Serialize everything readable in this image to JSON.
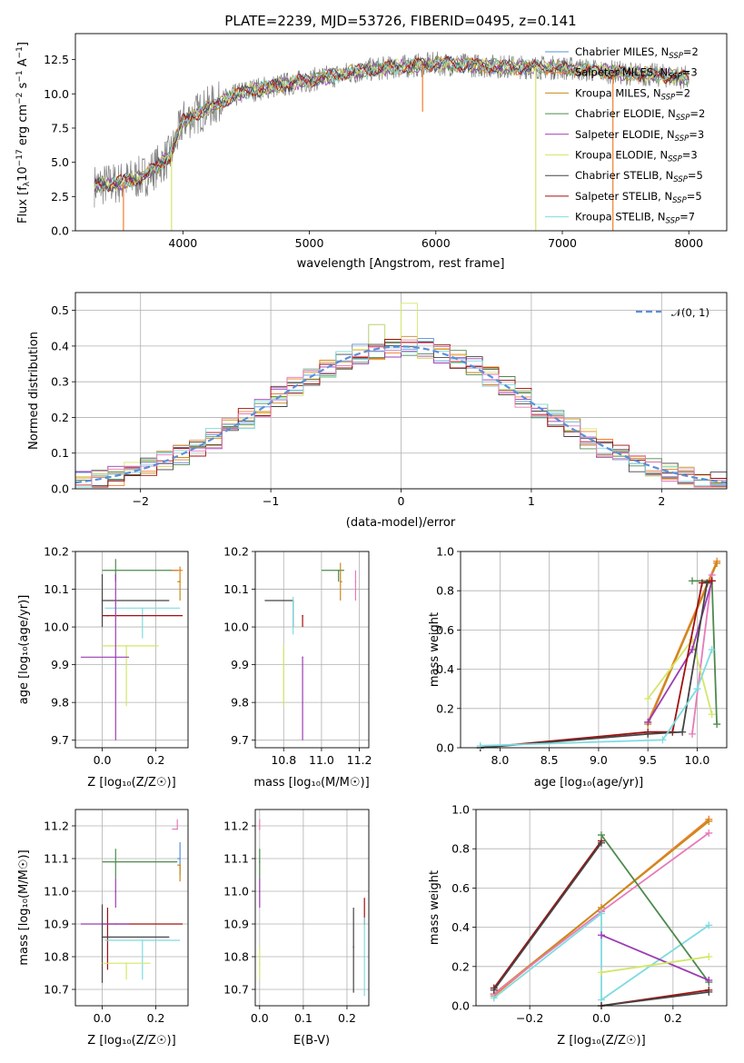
{
  "colors": {
    "chabrier_miles": "#5b8fd8",
    "salpeter_miles": "#f07d2a",
    "kroupa_miles": "#c98a1b",
    "chabrier_elodie": "#4d8a4d",
    "salpeter_elodie": "#9b3db3",
    "kroupa_elodie": "#d4e66a",
    "chabrier_stelib": "#444444",
    "salpeter_stelib": "#a01010",
    "kroupa_stelib": "#7fdbe0",
    "pink": "#e87ab8",
    "data": "#808080",
    "normal": "#5b8fd8"
  },
  "chart_data": [
    {
      "id": "spectrum",
      "type": "line",
      "title": "PLATE=2239, MJD=53726, FIBERID=0495, z=0.141",
      "xlabel": "wavelength [Angstrom, rest frame]",
      "ylabel_base": "Flux [f",
      "ylabel_sub": "λ",
      "ylabel_mid": "10",
      "ylabel_sup1": "−17",
      "ylabel_mid2": " erg cm",
      "ylabel_sup2": "−2",
      "ylabel_mid3": " s",
      "ylabel_sup3": "−1",
      "ylabel_mid4": " A",
      "ylabel_sup4": "−1",
      "ylabel_end": "]",
      "xlim": [
        3150,
        8300
      ],
      "ylim": [
        0,
        14.4
      ],
      "xticks": [
        4000,
        5000,
        6000,
        7000,
        8000
      ],
      "yticks": [
        0.0,
        2.5,
        5.0,
        7.5,
        10.0,
        12.5
      ],
      "xtick_labels": [
        "4000",
        "5000",
        "6000",
        "7000",
        "8000"
      ],
      "ytick_labels": [
        "0.0",
        "2.5",
        "5.0",
        "7.5",
        "10.0",
        "12.5"
      ],
      "legend_position": "top-right",
      "legend": [
        {
          "prefix": "Chabrier MILES, N",
          "sub": "SSP",
          "suffix": "=2"
        },
        {
          "prefix": "Salpeter MILES, N",
          "sub": "SSP",
          "suffix": "=3"
        },
        {
          "prefix": "Kroupa MILES, N",
          "sub": "SSP",
          "suffix": "=2"
        },
        {
          "prefix": "Chabrier ELODIE, N",
          "sub": "SSP",
          "suffix": "=2"
        },
        {
          "prefix": "Salpeter ELODIE, N",
          "sub": "SSP",
          "suffix": "=3"
        },
        {
          "prefix": "Kroupa ELODIE, N",
          "sub": "SSP",
          "suffix": "=3"
        },
        {
          "prefix": "Chabrier STELIB, N",
          "sub": "SSP",
          "suffix": "=5"
        },
        {
          "prefix": "Salpeter STELIB, N",
          "sub": "SSP",
          "suffix": "=5"
        },
        {
          "prefix": "Kroupa STELIB, N",
          "sub": "SSP",
          "suffix": "=7"
        }
      ],
      "data_x_range": [
        3300,
        8000
      ],
      "continuum": [
        [
          3300,
          3.3
        ],
        [
          3500,
          3.5
        ],
        [
          3700,
          4.0
        ],
        [
          3900,
          5.5
        ],
        [
          4000,
          8.0
        ],
        [
          4200,
          9.0
        ],
        [
          4500,
          10.2
        ],
        [
          5000,
          11.0
        ],
        [
          5500,
          11.8
        ],
        [
          6000,
          12.2
        ],
        [
          6500,
          12.0
        ],
        [
          7000,
          11.9
        ],
        [
          7500,
          11.5
        ],
        [
          8000,
          11.2
        ]
      ],
      "drops": [
        {
          "x": 3530,
          "y": 0.0
        },
        {
          "x": 3910,
          "y": 0.0
        },
        {
          "x": 5895,
          "y": 8.7
        },
        {
          "x": 6790,
          "y": 0.0
        },
        {
          "x": 7400,
          "y": 0.0
        }
      ]
    },
    {
      "id": "residuals",
      "type": "histogram",
      "xlabel": "(data-model)/error",
      "ylabel": "Normed distribution",
      "xlim": [
        -2.5,
        2.5
      ],
      "ylim": [
        0,
        0.55
      ],
      "xticks": [
        -2,
        -1,
        0,
        1,
        2
      ],
      "xtick_labels": [
        "−2",
        "−1",
        "0",
        "1",
        "2"
      ],
      "yticks": [
        0.0,
        0.1,
        0.2,
        0.3,
        0.4,
        0.5
      ],
      "ytick_labels": [
        "0.0",
        "0.1",
        "0.2",
        "0.3",
        "0.4",
        "0.5"
      ],
      "bins": 40,
      "highlight": [
        {
          "x": 0.1,
          "y": 0.52
        },
        {
          "x": -0.2,
          "y": 0.46
        }
      ],
      "legend_position": "top-right",
      "legend": [
        {
          "label": "𝒩(0, 1)",
          "style": "dashed"
        }
      ]
    },
    {
      "id": "age_vs_Z",
      "type": "errorbar",
      "xlabel": "Z [log₁₀(Z/Z☉)]",
      "ylabel": "age  [log₁₀(age/yr)]",
      "xlim": [
        -0.1,
        0.32
      ],
      "ylim": [
        9.68,
        10.2
      ],
      "xticks": [
        0.0,
        0.2
      ],
      "xtick_labels": [
        "0.0",
        "0.2"
      ],
      "yticks": [
        9.7,
        9.8,
        9.9,
        10.0,
        10.1,
        10.2
      ],
      "ytick_labels": [
        "9.7",
        "9.8",
        "9.9",
        "10.0",
        "10.1",
        "10.2"
      ],
      "points": [
        {
          "c": "chabrier_elodie",
          "x": 0.05,
          "xerr": [
            0.05,
            0.23
          ],
          "y": 10.15,
          "yerr": [
            0.03,
            0.03
          ]
        },
        {
          "c": "salpeter_miles",
          "x": 0.28,
          "xerr": [
            0.02,
            0.02
          ],
          "y": 10.15,
          "yerr": [
            0.0,
            0.0
          ]
        },
        {
          "c": "kroupa_miles",
          "x": 0.29,
          "xerr": [
            0.01,
            0.0
          ],
          "y": 10.12,
          "yerr": [
            0.05,
            0.04
          ]
        },
        {
          "c": "chabrier_stelib",
          "x": 0.0,
          "xerr": [
            0.0,
            0.25
          ],
          "y": 10.07,
          "yerr": [
            0.07,
            0.07
          ]
        },
        {
          "c": "kroupa_stelib",
          "x": 0.15,
          "xerr": [
            0.14,
            0.14
          ],
          "y": 10.05,
          "yerr": [
            0.08,
            0.0
          ]
        },
        {
          "c": "salpeter_stelib",
          "x": 0.02,
          "xerr": [
            0.02,
            0.28
          ],
          "y": 10.03,
          "yerr": [
            0.0,
            0.0
          ]
        },
        {
          "c": "kroupa_elodie",
          "x": 0.09,
          "xerr": [
            0.09,
            0.12
          ],
          "y": 9.95,
          "yerr": [
            0.16,
            0.0
          ]
        },
        {
          "c": "salpeter_elodie",
          "x": 0.05,
          "xerr": [
            0.13,
            0.05
          ],
          "y": 9.92,
          "yerr": [
            0.22,
            0.22
          ]
        }
      ]
    },
    {
      "id": "age_vs_mass",
      "type": "errorbar",
      "xlabel": "mass [log₁₀(M/M☉)]",
      "xlim": [
        10.65,
        11.25
      ],
      "ylim": [
        9.68,
        10.2
      ],
      "xticks": [
        10.8,
        11.0,
        11.2
      ],
      "xtick_labels": [
        "10.8",
        "11.0",
        "11.2"
      ],
      "yticks": [
        9.7,
        9.8,
        9.9,
        10.0,
        10.1,
        10.2
      ],
      "ytick_labels": [
        "9.7",
        "9.8",
        "9.9",
        "10.0",
        "10.1",
        "10.2"
      ],
      "points": [
        {
          "c": "chabrier_elodie",
          "x": 11.09,
          "xerr": [
            0.09,
            0.03
          ],
          "y": 10.15,
          "yerr": [
            0.03,
            0.0
          ]
        },
        {
          "c": "kroupa_miles",
          "x": 11.1,
          "xerr": [
            0.0,
            0.01
          ],
          "y": 10.12,
          "yerr": [
            0.05,
            0.05
          ]
        },
        {
          "c": "pink",
          "x": 11.18,
          "xerr": [
            0.0,
            0.0
          ],
          "y": 10.12,
          "yerr": [
            0.05,
            0.03
          ]
        },
        {
          "c": "chabrier_stelib",
          "x": 10.85,
          "xerr": [
            0.15,
            0.0
          ],
          "y": 10.07,
          "yerr": [
            0.07,
            0.0
          ]
        },
        {
          "c": "kroupa_stelib",
          "x": 10.85,
          "xerr": [
            0.0,
            0.0
          ],
          "y": 10.05,
          "yerr": [
            0.07,
            0.03
          ]
        },
        {
          "c": "salpeter_stelib",
          "x": 10.9,
          "xerr": [
            0.0,
            0.0
          ],
          "y": 10.03,
          "yerr": [
            0.03,
            0.0
          ]
        },
        {
          "c": "kroupa_elodie",
          "x": 10.8,
          "xerr": [
            0.0,
            0.0
          ],
          "y": 9.95,
          "yerr": [
            0.16,
            0.0
          ]
        },
        {
          "c": "salpeter_elodie",
          "x": 10.9,
          "xerr": [
            0.0,
            0.0
          ],
          "y": 9.92,
          "yerr": [
            0.22,
            0.0
          ]
        }
      ]
    },
    {
      "id": "weight_vs_age",
      "type": "line",
      "xlabel": "age  [log₁₀(age/yr)]",
      "ylabel": "mass weight",
      "xlim": [
        7.6,
        10.3
      ],
      "ylim": [
        0,
        1
      ],
      "xticks": [
        8.0,
        8.5,
        9.0,
        9.5,
        10.0
      ],
      "xtick_labels": [
        "8.0",
        "8.5",
        "9.0",
        "9.5",
        "10.0"
      ],
      "yticks": [
        0.0,
        0.2,
        0.4,
        0.6,
        0.8,
        1.0
      ],
      "ytick_labels": [
        "0.0",
        "0.2",
        "0.4",
        "0.6",
        "0.8",
        "1.0"
      ],
      "series": [
        {
          "c": "salpeter_miles",
          "x": [
            9.5,
            10.2
          ],
          "y": [
            0.13,
            0.95
          ]
        },
        {
          "c": "kroupa_miles",
          "x": [
            9.5,
            10.2
          ],
          "y": [
            0.12,
            0.94
          ]
        },
        {
          "c": "pink",
          "x": [
            9.95,
            10.15
          ],
          "y": [
            0.07,
            0.88
          ]
        },
        {
          "c": "kroupa_elodie",
          "x": [
            9.5,
            9.95,
            10.15
          ],
          "y": [
            0.25,
            0.55,
            0.17
          ]
        },
        {
          "c": "salpeter_elodie",
          "x": [
            9.5,
            9.95,
            10.15
          ],
          "y": [
            0.13,
            0.5,
            0.85
          ]
        },
        {
          "c": "chabrier_elodie",
          "x": [
            9.95,
            10.15,
            10.2
          ],
          "y": [
            0.85,
            0.85,
            0.12
          ]
        },
        {
          "c": "salpeter_stelib",
          "x": [
            7.8,
            9.5,
            9.75,
            10.05,
            10.15
          ],
          "y": [
            0.0,
            0.08,
            0.08,
            0.84,
            0.85
          ]
        },
        {
          "c": "chabrier_stelib",
          "x": [
            7.8,
            9.5,
            9.85,
            10.1
          ],
          "y": [
            0.0,
            0.07,
            0.08,
            0.84
          ]
        },
        {
          "c": "kroupa_stelib",
          "x": [
            7.8,
            9.65,
            10.0,
            10.15
          ],
          "y": [
            0.01,
            0.04,
            0.3,
            0.5
          ]
        }
      ]
    },
    {
      "id": "mass_vs_Z",
      "type": "errorbar",
      "xlabel": "Z [log₁₀(Z/Z☉)]",
      "ylabel": "mass [log₁₀(M/M☉)]",
      "xlim": [
        -0.1,
        0.32
      ],
      "ylim": [
        10.65,
        11.25
      ],
      "xticks": [
        0.0,
        0.2
      ],
      "xtick_labels": [
        "0.0",
        "0.2"
      ],
      "yticks": [
        10.7,
        10.8,
        10.9,
        11.0,
        11.1,
        11.2
      ],
      "ytick_labels": [
        "10.7",
        "10.8",
        "10.9",
        "11.0",
        "11.1",
        "11.2"
      ],
      "points": [
        {
          "c": "pink",
          "x": 0.28,
          "xerr": [
            0.02,
            0.0
          ],
          "y": 11.19,
          "yerr": [
            0.0,
            0.03
          ]
        },
        {
          "c": "chabrier_miles",
          "x": 0.29,
          "xerr": [
            0.01,
            0.0
          ],
          "y": 11.1,
          "yerr": [
            0.05,
            0.05
          ]
        },
        {
          "c": "chabrier_elodie",
          "x": 0.05,
          "xerr": [
            0.05,
            0.23
          ],
          "y": 11.09,
          "yerr": [
            0.05,
            0.04
          ]
        },
        {
          "c": "kroupa_miles",
          "x": 0.29,
          "xerr": [
            0.01,
            0.0
          ],
          "y": 11.08,
          "yerr": [
            0.05,
            0.0
          ]
        },
        {
          "c": "salpeter_elodie",
          "x": 0.05,
          "xerr": [
            0.0,
            0.0
          ],
          "y": 11.0,
          "yerr": [
            0.05,
            0.04
          ]
        },
        {
          "c": "salpeter_stelib",
          "x": 0.02,
          "xerr": [
            0.02,
            0.28
          ],
          "y": 10.9,
          "yerr": [
            0.14,
            0.05
          ]
        },
        {
          "c": "salpeter_elodie",
          "x": 0.05,
          "xerr": [
            0.13,
            0.05
          ],
          "y": 10.9,
          "yerr": [
            0.0,
            0.0
          ]
        },
        {
          "c": "chabrier_stelib",
          "x": 0.0,
          "xerr": [
            0.0,
            0.25
          ],
          "y": 10.86,
          "yerr": [
            0.14,
            0.1
          ]
        },
        {
          "c": "kroupa_stelib",
          "x": 0.15,
          "xerr": [
            0.14,
            0.14
          ],
          "y": 10.85,
          "yerr": [
            0.12,
            0.0
          ]
        },
        {
          "c": "kroupa_elodie",
          "x": 0.09,
          "xerr": [
            0.09,
            0.09
          ],
          "y": 10.78,
          "yerr": [
            0.05,
            0.0
          ]
        }
      ]
    },
    {
      "id": "mass_vs_ebv",
      "type": "errorbar",
      "xlabel": "E(B-V)",
      "xlim": [
        -0.01,
        0.25
      ],
      "ylim": [
        10.65,
        11.25
      ],
      "xticks": [
        0.0,
        0.1,
        0.2
      ],
      "xtick_labels": [
        "0.0",
        "0.1",
        "0.2"
      ],
      "yticks": [
        10.7,
        10.8,
        10.9,
        11.0,
        11.1,
        11.2
      ],
      "ytick_labels": [
        "10.7",
        "10.8",
        "10.9",
        "11.0",
        "11.1",
        "11.2"
      ],
      "points": [
        {
          "c": "pink",
          "x": 0.0,
          "y": 11.19,
          "yerr": [
            0.0,
            0.03
          ]
        },
        {
          "c": "chabrier_elodie",
          "x": 0.0,
          "y": 11.09,
          "yerr": [
            0.05,
            0.04
          ]
        },
        {
          "c": "salpeter_elodie",
          "x": 0.0,
          "y": 11.0,
          "yerr": [
            0.05,
            0.04
          ]
        },
        {
          "c": "kroupa_elodie",
          "x": 0.0,
          "y": 10.78,
          "yerr": [
            0.05,
            0.05
          ]
        },
        {
          "c": "chabrier_stelib",
          "x": 0.215,
          "y": 10.83,
          "yerr": [
            0.14,
            0.12
          ]
        },
        {
          "c": "salpeter_stelib",
          "x": 0.24,
          "y": 10.9,
          "yerr": [
            0.0,
            0.08
          ]
        },
        {
          "c": "kroupa_stelib",
          "x": 0.24,
          "y": 10.8,
          "yerr": [
            0.12,
            0.12
          ]
        }
      ]
    },
    {
      "id": "weight_vs_Z",
      "type": "line",
      "xlabel": "Z [log₁₀(Z/Z☉)]",
      "ylabel": "mass weight",
      "xlim": [
        -0.35,
        0.35
      ],
      "ylim": [
        0,
        1
      ],
      "xticks": [
        -0.2,
        0.0,
        0.2
      ],
      "xtick_labels": [
        "−0.2",
        "0.0",
        "0.2"
      ],
      "yticks": [
        0.0,
        0.2,
        0.4,
        0.6,
        0.8,
        1.0
      ],
      "ytick_labels": [
        "0.0",
        "0.2",
        "0.4",
        "0.6",
        "0.8",
        "1.0"
      ],
      "series": [
        {
          "c": "salpeter_miles",
          "x": [
            -0.3,
            0.0,
            0.3
          ],
          "y": [
            0.05,
            0.5,
            0.95
          ]
        },
        {
          "c": "kroupa_miles",
          "x": [
            -0.3,
            0.0,
            0.3
          ],
          "y": [
            0.06,
            0.5,
            0.94
          ]
        },
        {
          "c": "pink",
          "x": [
            -0.3,
            0.0,
            0.3
          ],
          "y": [
            0.06,
            0.48,
            0.88
          ]
        },
        {
          "c": "salpeter_stelib",
          "x": [
            -0.3,
            0.0
          ],
          "y": [
            0.09,
            0.84
          ]
        },
        {
          "c": "chabrier_stelib",
          "x": [
            -0.3,
            0.0
          ],
          "y": [
            0.08,
            0.83
          ]
        },
        {
          "c": "kroupa_stelib",
          "x": [
            -0.3,
            0.0,
            0.0,
            0.3
          ],
          "y": [
            0.04,
            0.47,
            0.03,
            0.41
          ]
        },
        {
          "c": "chabrier_elodie",
          "x": [
            0.0,
            0.3
          ],
          "y": [
            0.87,
            0.12
          ]
        },
        {
          "c": "salpeter_elodie",
          "x": [
            0.0,
            0.3
          ],
          "y": [
            0.36,
            0.13
          ]
        },
        {
          "c": "kroupa_elodie",
          "x": [
            0.0,
            0.3
          ],
          "y": [
            0.17,
            0.25
          ]
        },
        {
          "c": "salpeter_stelib",
          "x": [
            0.0,
            0.3
          ],
          "y": [
            0.0,
            0.08
          ]
        },
        {
          "c": "chabrier_stelib",
          "x": [
            0.0,
            0.3
          ],
          "y": [
            0.0,
            0.07
          ]
        }
      ]
    }
  ]
}
